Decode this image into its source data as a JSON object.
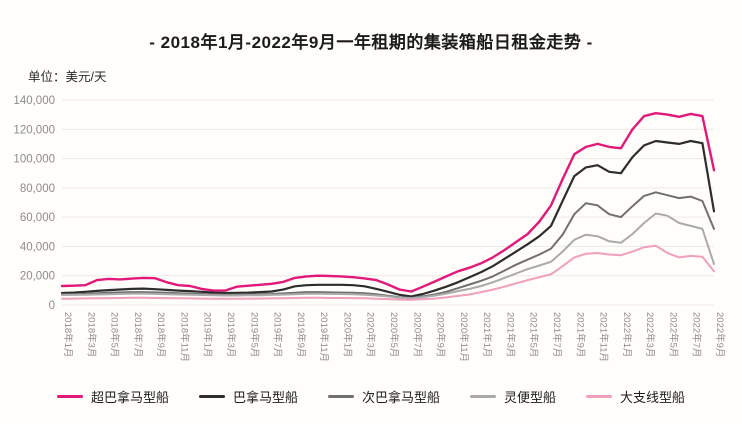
{
  "title": "- 2018年1月-2022年9月一年租期的集装箱船日租金走势 -",
  "unit_label": "单位：美元/天",
  "colors": {
    "background": "#fffefa",
    "title_text": "#1c1c1c",
    "axis_text": "#8c8c8c",
    "gridline": "#eceae6",
    "super_panamax": "#e2187a",
    "panamax": "#2d2d2d",
    "sub_panamax": "#707070",
    "handy": "#aaaaaa",
    "feeder": "#f29ebd"
  },
  "chart_data": {
    "type": "line",
    "title": "- 2018年1月-2022年9月一年租期的集装箱船日租金走势 -",
    "ylabel": "单位：美元/天",
    "xlabel": "",
    "ylim": [
      0,
      140000
    ],
    "ytick_step": 20000,
    "ytick_labels": [
      "0",
      "20,000",
      "40,000",
      "60,000",
      "80,000",
      "100,000",
      "120,000",
      "140,000"
    ],
    "grid": true,
    "legend_position": "bottom",
    "x_months": [
      "2018年1月",
      "2018年2月",
      "2018年3月",
      "2018年4月",
      "2018年5月",
      "2018年6月",
      "2018年7月",
      "2018年8月",
      "2018年9月",
      "2018年10月",
      "2018年11月",
      "2018年12月",
      "2019年1月",
      "2019年2月",
      "2019年3月",
      "2019年4月",
      "2019年5月",
      "2019年6月",
      "2019年7月",
      "2019年8月",
      "2019年9月",
      "2019年10月",
      "2019年11月",
      "2019年12月",
      "2020年1月",
      "2020年2月",
      "2020年3月",
      "2020年4月",
      "2020年5月",
      "2020年6月",
      "2020年7月",
      "2020年8月",
      "2020年9月",
      "2020年10月",
      "2020年11月",
      "2020年12月",
      "2021年1月",
      "2021年2月",
      "2021年3月",
      "2021年4月",
      "2021年5月",
      "2021年6月",
      "2021年7月",
      "2021年8月",
      "2021年9月",
      "2021年10月",
      "2021年11月",
      "2021年12月",
      "2022年1月",
      "2022年2月",
      "2022年3月",
      "2022年4月",
      "2022年5月",
      "2022年6月",
      "2022年7月",
      "2022年8月",
      "2022年9月"
    ],
    "xtick_labels": [
      "2018年1月",
      "2018年3月",
      "2018年5月",
      "2018年7月",
      "2018年9月",
      "2018年11月",
      "2019年1月",
      "2019年3月",
      "2019年5月",
      "2019年7月",
      "2019年9月",
      "2019年11月",
      "2020年1月",
      "2020年3月",
      "2020年5月",
      "2020年7月",
      "2020年9月",
      "2020年11月",
      "2021年1月",
      "2021年3月",
      "2021年5月",
      "2021年7月",
      "2021年9月",
      "2021年11月",
      "2022年1月",
      "2022年3月",
      "2022年5月",
      "2022年7月",
      "2022年9月"
    ],
    "series": [
      {
        "key": "super_panamax",
        "name": "超巴拿马型船",
        "color": "#e2187a",
        "width": 2.4,
        "values": [
          13000,
          13200,
          13500,
          17000,
          17800,
          17500,
          18000,
          18500,
          18300,
          15500,
          13500,
          13000,
          11000,
          9800,
          9800,
          12500,
          13200,
          13800,
          14500,
          15800,
          18500,
          19500,
          20000,
          19800,
          19500,
          19000,
          18200,
          17000,
          14000,
          10500,
          9200,
          12500,
          16000,
          19500,
          23000,
          25500,
          28500,
          32500,
          37500,
          43000,
          48500,
          57000,
          68000,
          86000,
          103000,
          108000,
          110000,
          108000,
          107000,
          120000,
          129000,
          131000,
          130000,
          128500,
          130500,
          129000,
          92000
        ]
      },
      {
        "key": "panamax",
        "name": "巴拿马型船",
        "color": "#2d2d2d",
        "width": 2.2,
        "values": [
          8200,
          8500,
          9000,
          9600,
          10200,
          10600,
          11000,
          11200,
          10800,
          10300,
          9800,
          9500,
          9000,
          8500,
          8200,
          8300,
          8500,
          8800,
          9200,
          10500,
          12800,
          13500,
          13800,
          13800,
          13800,
          13500,
          12800,
          11000,
          9000,
          7000,
          5800,
          7500,
          9800,
          12500,
          15500,
          19000,
          22500,
          26500,
          31500,
          36500,
          41500,
          47000,
          54000,
          71000,
          88000,
          94000,
          95500,
          91000,
          90000,
          101000,
          109000,
          112000,
          111000,
          110000,
          112000,
          110500,
          64000
        ]
      },
      {
        "key": "sub_panamax",
        "name": "次巴拿马型船",
        "color": "#707070",
        "width": 2,
        "values": [
          7200,
          7400,
          7600,
          8000,
          8300,
          8600,
          8800,
          8800,
          8600,
          8300,
          8000,
          7800,
          7500,
          7200,
          7000,
          7000,
          7100,
          7300,
          7500,
          7900,
          8400,
          8800,
          8800,
          8600,
          8500,
          8300,
          8000,
          7300,
          6300,
          5300,
          4800,
          5900,
          7200,
          9000,
          11500,
          14000,
          16500,
          19500,
          23500,
          27500,
          31000,
          34500,
          38500,
          48000,
          62000,
          69500,
          68000,
          62000,
          60000,
          67500,
          74500,
          77000,
          75000,
          73000,
          74000,
          71000,
          52000
        ]
      },
      {
        "key": "handy",
        "name": "灵便型船",
        "color": "#aaaaaa",
        "width": 2,
        "values": [
          6800,
          6900,
          7000,
          7200,
          7400,
          7600,
          7800,
          7800,
          7600,
          7400,
          7200,
          7000,
          6800,
          6600,
          6500,
          6500,
          6600,
          6700,
          6900,
          7100,
          7400,
          7700,
          7700,
          7600,
          7500,
          7300,
          7000,
          6500,
          5800,
          5000,
          4600,
          5400,
          6400,
          7800,
          9500,
          11000,
          13000,
          15500,
          18500,
          21500,
          24500,
          27000,
          29500,
          36500,
          44500,
          48000,
          47000,
          43500,
          42500,
          48500,
          56000,
          62500,
          61000,
          56000,
          54000,
          52000,
          28000
        ]
      },
      {
        "key": "feeder",
        "name": "大支线型船",
        "color": "#f29ebd",
        "width": 2,
        "values": [
          4300,
          4400,
          4500,
          4600,
          4700,
          4800,
          4900,
          4900,
          4800,
          4700,
          4600,
          4500,
          4400,
          4300,
          4300,
          4300,
          4400,
          4400,
          4500,
          4600,
          4800,
          4900,
          4900,
          4800,
          4800,
          4700,
          4600,
          4300,
          4000,
          3700,
          3500,
          3900,
          4400,
          5200,
          6200,
          7200,
          8800,
          10500,
          12500,
          14800,
          17000,
          19000,
          21000,
          26500,
          32500,
          35000,
          35500,
          34500,
          34000,
          36500,
          39500,
          40500,
          35500,
          32500,
          33500,
          33000,
          23000
        ]
      }
    ]
  }
}
